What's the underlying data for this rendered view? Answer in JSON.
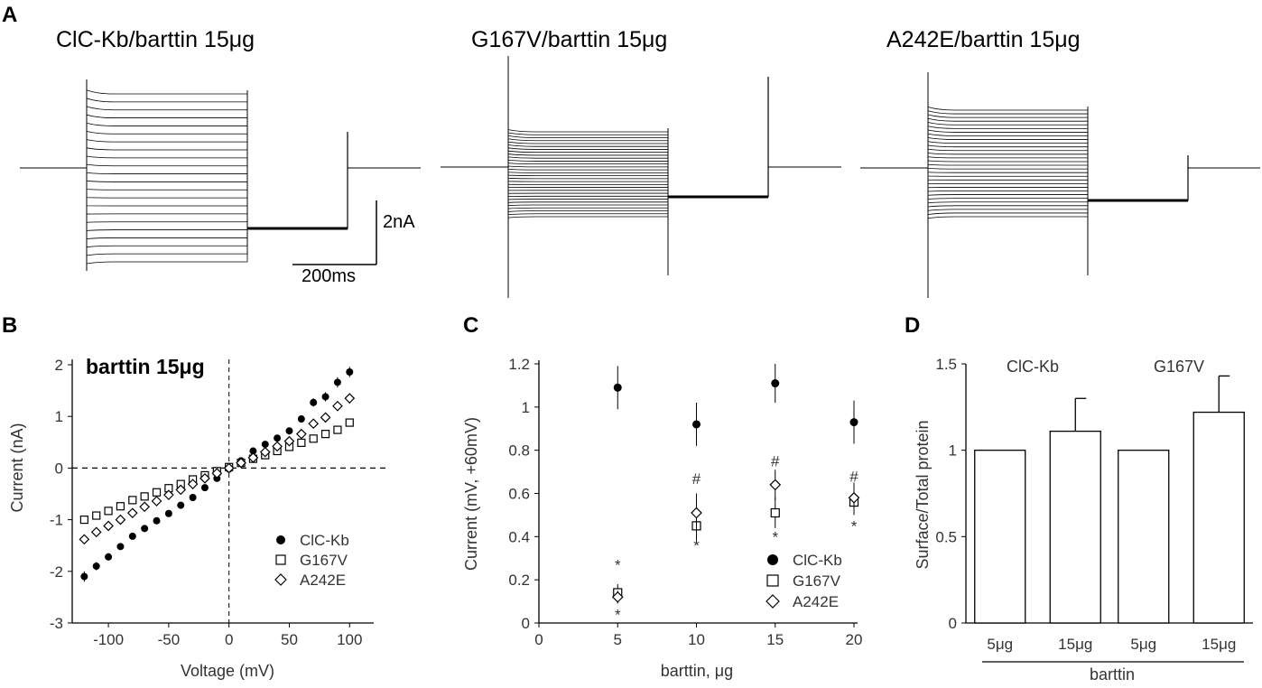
{
  "panel_labels": {
    "A": "A",
    "B": "B",
    "C": "C",
    "D": "D"
  },
  "panel_a": {
    "traces": [
      {
        "title": "ClC-Kb/barttin 15μg"
      },
      {
        "title": "G167V/barttin 15μg"
      },
      {
        "title": "A242E/barttin 15μg"
      }
    ],
    "scale_bar": {
      "current_label": "2nA",
      "time_label": "200ms"
    }
  },
  "chart_data": [
    {
      "panel": "B",
      "type": "scatter",
      "title": "barttin 15μg",
      "xlabel": "Voltage (mV)",
      "ylabel": "Current (nA)",
      "xlim": [
        -130,
        120
      ],
      "ylim": [
        -3,
        2
      ],
      "xticks": [
        -100,
        -50,
        0,
        50,
        100
      ],
      "yticks": [
        -3,
        -2,
        -1,
        0,
        1,
        2
      ],
      "x": [
        -120,
        -110,
        -100,
        -90,
        -80,
        -70,
        -60,
        -50,
        -40,
        -30,
        -20,
        -10,
        0,
        10,
        20,
        30,
        40,
        50,
        60,
        70,
        80,
        90,
        100
      ],
      "series": [
        {
          "name": "ClC-Kb",
          "marker": "filled-circle",
          "values": [
            -2.1,
            -1.9,
            -1.72,
            -1.52,
            -1.32,
            -1.17,
            -1.02,
            -0.88,
            -0.72,
            -0.57,
            -0.38,
            -0.2,
            -0.02,
            0.14,
            0.33,
            0.46,
            0.58,
            0.72,
            0.95,
            1.27,
            1.38,
            1.66,
            1.86
          ],
          "errors": [
            0.1,
            0.08,
            0.07,
            0.06,
            0.05,
            0.04,
            0.04,
            0.03,
            0.03,
            0.02,
            0.02,
            0.02,
            0.02,
            0.02,
            0.03,
            0.03,
            0.04,
            0.05,
            0.07,
            0.08,
            0.09,
            0.1,
            0.1
          ]
        },
        {
          "name": "G167V",
          "marker": "open-square",
          "values": [
            -1.0,
            -0.92,
            -0.83,
            -0.74,
            -0.62,
            -0.55,
            -0.47,
            -0.39,
            -0.31,
            -0.22,
            -0.14,
            -0.06,
            0.02,
            0.1,
            0.18,
            0.25,
            0.33,
            0.41,
            0.49,
            0.57,
            0.66,
            0.74,
            0.88
          ],
          "errors": [
            0.05,
            0.04,
            0.04,
            0.03,
            0.03,
            0.03,
            0.02,
            0.02,
            0.02,
            0.02,
            0.02,
            0.02,
            0.02,
            0.02,
            0.02,
            0.02,
            0.02,
            0.02,
            0.03,
            0.03,
            0.03,
            0.04,
            0.05
          ]
        },
        {
          "name": "A242E",
          "marker": "open-diamond",
          "values": [
            -1.38,
            -1.24,
            -1.12,
            -1.0,
            -0.87,
            -0.75,
            -0.64,
            -0.52,
            -0.42,
            -0.31,
            -0.2,
            -0.1,
            0.0,
            0.1,
            0.2,
            0.31,
            0.42,
            0.52,
            0.66,
            0.86,
            0.98,
            1.2,
            1.35
          ],
          "errors": [
            0.08,
            0.07,
            0.06,
            0.05,
            0.05,
            0.04,
            0.04,
            0.03,
            0.03,
            0.02,
            0.02,
            0.02,
            0.02,
            0.02,
            0.02,
            0.03,
            0.03,
            0.04,
            0.05,
            0.07,
            0.08,
            0.09,
            0.1
          ]
        }
      ],
      "legend": [
        "ClC-Kb",
        "G167V",
        "A242E"
      ],
      "legend_position": "bottom-right",
      "guides": "dashed lines at x=0 and y=0"
    },
    {
      "panel": "C",
      "type": "scatter",
      "title": "",
      "xlabel": "barttin, μg",
      "ylabel": "Current (mV, +60mV)",
      "xlim": [
        0,
        20
      ],
      "ylim": [
        0,
        1.2
      ],
      "xticks": [
        0,
        5,
        10,
        15,
        20
      ],
      "yticks": [
        0,
        0.2,
        0.4,
        0.6,
        0.8,
        1,
        1.2
      ],
      "ytick_labels": [
        "0",
        "0.2",
        "0.4",
        "0.6",
        "0.8",
        "1",
        "1.2"
      ],
      "x": [
        5,
        10,
        15,
        20
      ],
      "series": [
        {
          "name": "ClC-Kb",
          "marker": "filled-circle",
          "values": [
            1.09,
            0.92,
            1.11,
            0.93
          ],
          "errors": [
            0.1,
            0.1,
            0.09,
            0.1
          ]
        },
        {
          "name": "G167V",
          "marker": "open-square",
          "values": [
            0.14,
            0.45,
            0.51,
            0.56
          ],
          "errors": [
            0.04,
            0.08,
            0.07,
            0.06
          ]
        },
        {
          "name": "A242E",
          "marker": "open-diamond",
          "values": [
            0.12,
            0.51,
            0.64,
            0.58
          ],
          "errors": [
            0.03,
            0.09,
            0.07,
            0.07
          ]
        }
      ],
      "annotations": [
        {
          "x": 5,
          "y": 0.27,
          "text": "*"
        },
        {
          "x": 5,
          "y": 0.04,
          "text": "*"
        },
        {
          "x": 10,
          "y": 0.67,
          "text": "#"
        },
        {
          "x": 10,
          "y": 0.36,
          "text": "*"
        },
        {
          "x": 15,
          "y": 0.75,
          "text": "#"
        },
        {
          "x": 15,
          "y": 0.4,
          "text": "*"
        },
        {
          "x": 20,
          "y": 0.68,
          "text": "#"
        },
        {
          "x": 20,
          "y": 0.45,
          "text": "*"
        }
      ],
      "legend": [
        "ClC-Kb",
        "G167V",
        "A242E"
      ],
      "legend_position": "bottom-right"
    },
    {
      "panel": "D",
      "type": "bar",
      "title": "",
      "ylabel": "Surface/Total protein",
      "xlabel": "barttin",
      "categories": [
        "5μg",
        "15μg",
        "5μg",
        "15μg"
      ],
      "values": [
        1.0,
        1.11,
        1.0,
        1.22
      ],
      "errors": [
        0,
        0.19,
        0,
        0.21
      ],
      "ylim": [
        0,
        1.5
      ],
      "yticks": [
        0,
        0.5,
        1,
        1.5
      ],
      "ytick_labels": [
        "0",
        "0.5",
        "1",
        "1.5"
      ],
      "group_labels": [
        "ClC-Kb",
        "G167V"
      ]
    }
  ]
}
